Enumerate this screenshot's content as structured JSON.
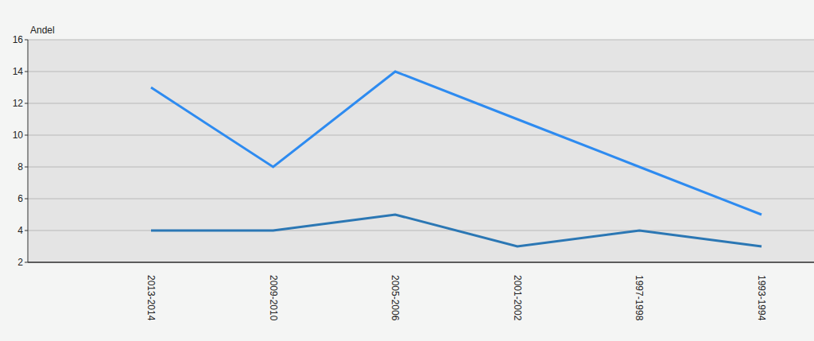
{
  "chart_data": {
    "type": "line",
    "y_label": "Andel",
    "categories": [
      "2013-2014",
      "2009-2010",
      "2005-2006",
      "2001-2002",
      "1997-1998",
      "1993-1994"
    ],
    "series": [
      {
        "color": "#2e8bf0",
        "values": [
          13,
          8,
          14,
          11,
          8,
          5
        ]
      },
      {
        "color": "#2b77b4",
        "values": [
          4,
          4,
          5,
          3,
          4,
          3
        ]
      }
    ],
    "ylim": [
      2,
      16
    ],
    "yticks": [
      2,
      4,
      6,
      8,
      10,
      12,
      14,
      16
    ],
    "grid": true
  }
}
